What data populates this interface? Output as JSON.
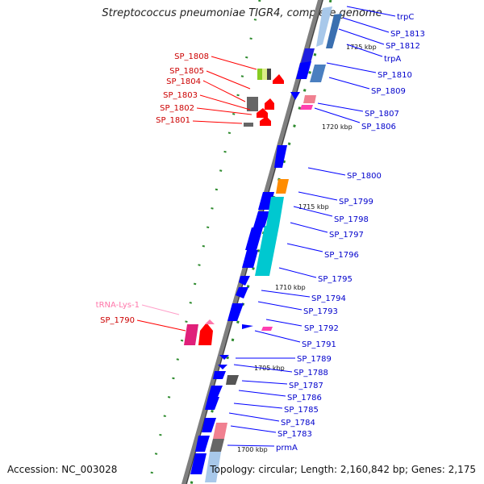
{
  "title": "Streptococcus pneumoniae TIGR4, complete genome",
  "footer": {
    "accession": "Accession: NC_003028",
    "topology": "Topology: circular; Length: 2,160,842 bp; Genes: 2,175"
  },
  "colors": {
    "backbone": "#7f7f7f",
    "gene_forward": "#0000ff",
    "gene_reverse": "#ff0000",
    "trna": "#ff77aa",
    "tick": "#228b22",
    "label_forward": "#0000cc",
    "label_reverse": "#cc0000"
  },
  "kbp_labels": [
    "1725 kbp",
    "1720 kbp",
    "1715 kbp",
    "1710 kbp",
    "1705 kbp",
    "1700 kbp"
  ],
  "right_labels": [
    "trpC",
    "SP_1813",
    "SP_1812",
    "trpA",
    "SP_1810",
    "SP_1809",
    "SP_1807",
    "SP_1806",
    "SP_1800",
    "SP_1799",
    "SP_1798",
    "SP_1797",
    "SP_1796",
    "SP_1795",
    "SP_1794",
    "SP_1793",
    "SP_1792",
    "SP_1791",
    "SP_1789",
    "SP_1788",
    "SP_1787",
    "SP_1786",
    "SP_1785",
    "SP_1784",
    "SP_1783",
    "prmA"
  ],
  "left_labels": [
    "SP_1808",
    "SP_1805",
    "SP_1804",
    "SP_1803",
    "SP_1802",
    "SP_1801",
    "tRNA-Lys-1",
    "SP_1790"
  ]
}
